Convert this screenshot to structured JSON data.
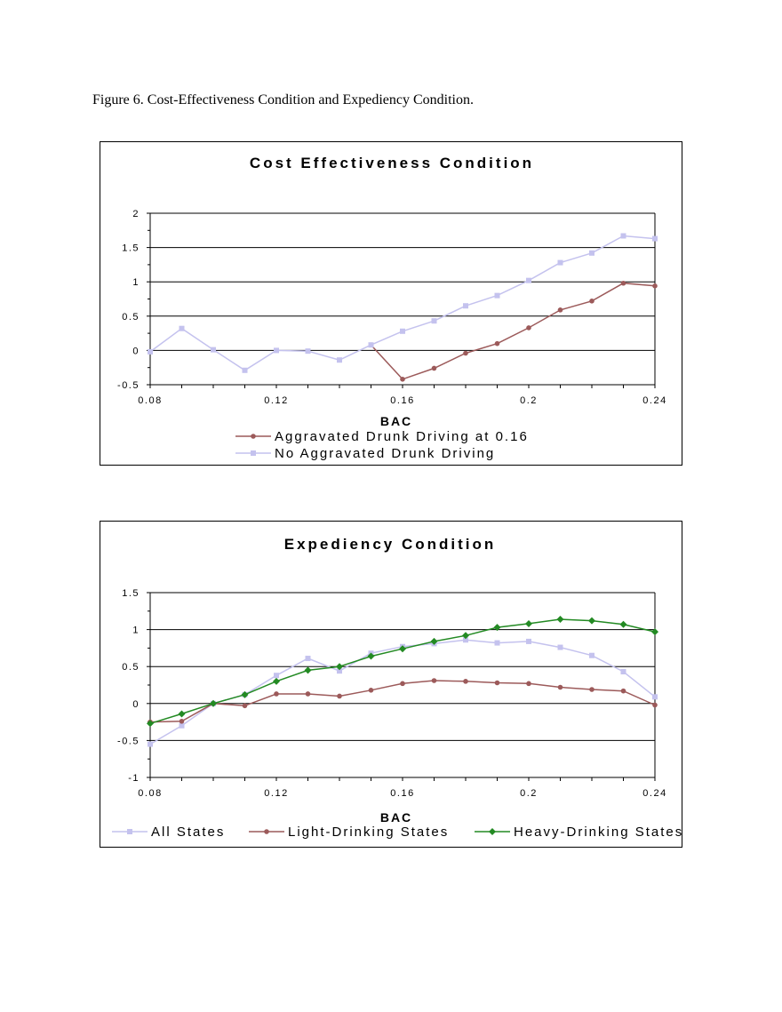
{
  "caption": "Figure 6.  Cost-Effectiveness Condition and Expediency Condition.",
  "chart_data": [
    {
      "type": "line",
      "title": "Cost Effectiveness Condition",
      "xlabel": "BAC",
      "ylabel": "",
      "xlim": [
        0.08,
        0.24
      ],
      "ylim": [
        -0.5,
        2
      ],
      "xticks": [
        0.08,
        0.12,
        0.16,
        0.2,
        0.24
      ],
      "xtick_labels": [
        "0.08",
        "0.12",
        "0.16",
        "0.2",
        "0.24"
      ],
      "yticks": [
        -0.5,
        0,
        0.5,
        1,
        1.5,
        2
      ],
      "ytick_labels": [
        "-0.5",
        "0",
        "0.5",
        "1",
        "1.5",
        "2"
      ],
      "grid": "horizontal",
      "legend": "bottom",
      "series": [
        {
          "name": "Aggravated Drunk Driving at 0.16",
          "color": "#9c5a5a",
          "marker": "circle",
          "x": [
            0.15,
            0.16,
            0.17,
            0.18,
            0.19,
            0.2,
            0.21,
            0.22,
            0.23,
            0.24
          ],
          "values": [
            0.08,
            -0.42,
            -0.26,
            -0.04,
            0.1,
            0.33,
            0.59,
            0.72,
            0.98,
            0.94
          ]
        },
        {
          "name": "No Aggravated Drunk Driving",
          "color": "#c4c2ee",
          "marker": "square",
          "x": [
            0.08,
            0.09,
            0.1,
            0.11,
            0.12,
            0.13,
            0.14,
            0.15,
            0.16,
            0.17,
            0.18,
            0.19,
            0.2,
            0.21,
            0.22,
            0.23,
            0.24
          ],
          "values": [
            -0.02,
            0.32,
            0.01,
            -0.29,
            0.0,
            -0.01,
            -0.14,
            0.08,
            0.28,
            0.43,
            0.65,
            0.8,
            1.02,
            1.28,
            1.42,
            1.67,
            1.63
          ]
        }
      ]
    },
    {
      "type": "line",
      "title": "Expediency Condition",
      "xlabel": "BAC",
      "ylabel": "",
      "xlim": [
        0.08,
        0.24
      ],
      "ylim": [
        -1,
        1.5
      ],
      "xticks": [
        0.08,
        0.12,
        0.16,
        0.2,
        0.24
      ],
      "xtick_labels": [
        "0.08",
        "0.12",
        "0.16",
        "0.2",
        "0.24"
      ],
      "yticks": [
        -1,
        -0.5,
        0,
        0.5,
        1,
        1.5
      ],
      "ytick_labels": [
        "-1",
        "-0.5",
        "0",
        "0.5",
        "1",
        "1.5"
      ],
      "grid": "horizontal",
      "legend": "bottom",
      "series": [
        {
          "name": "All States",
          "color": "#c4c2ee",
          "marker": "square",
          "x": [
            0.08,
            0.09,
            0.1,
            0.11,
            0.12,
            0.13,
            0.14,
            0.15,
            0.16,
            0.17,
            0.18,
            0.19,
            0.2,
            0.21,
            0.22,
            0.23,
            0.24
          ],
          "values": [
            -0.55,
            -0.3,
            0.0,
            0.12,
            0.38,
            0.61,
            0.44,
            0.68,
            0.77,
            0.81,
            0.86,
            0.82,
            0.84,
            0.76,
            0.65,
            0.43,
            0.09
          ]
        },
        {
          "name": "Light-Drinking States",
          "color": "#9c5a5a",
          "marker": "circle",
          "x": [
            0.08,
            0.09,
            0.1,
            0.11,
            0.12,
            0.13,
            0.14,
            0.15,
            0.16,
            0.17,
            0.18,
            0.19,
            0.2,
            0.21,
            0.22,
            0.23,
            0.24
          ],
          "values": [
            -0.25,
            -0.24,
            0.0,
            -0.03,
            0.13,
            0.13,
            0.1,
            0.18,
            0.27,
            0.31,
            0.3,
            0.28,
            0.27,
            0.22,
            0.19,
            0.17,
            -0.02
          ]
        },
        {
          "name": "Heavy-Drinking States",
          "color": "#238a23",
          "marker": "diamond",
          "x": [
            0.08,
            0.09,
            0.1,
            0.11,
            0.12,
            0.13,
            0.14,
            0.15,
            0.16,
            0.17,
            0.18,
            0.19,
            0.2,
            0.21,
            0.22,
            0.23,
            0.24
          ],
          "values": [
            -0.27,
            -0.14,
            0.0,
            0.12,
            0.3,
            0.45,
            0.5,
            0.64,
            0.74,
            0.84,
            0.92,
            1.03,
            1.08,
            1.14,
            1.12,
            1.07,
            0.97
          ]
        }
      ]
    }
  ]
}
